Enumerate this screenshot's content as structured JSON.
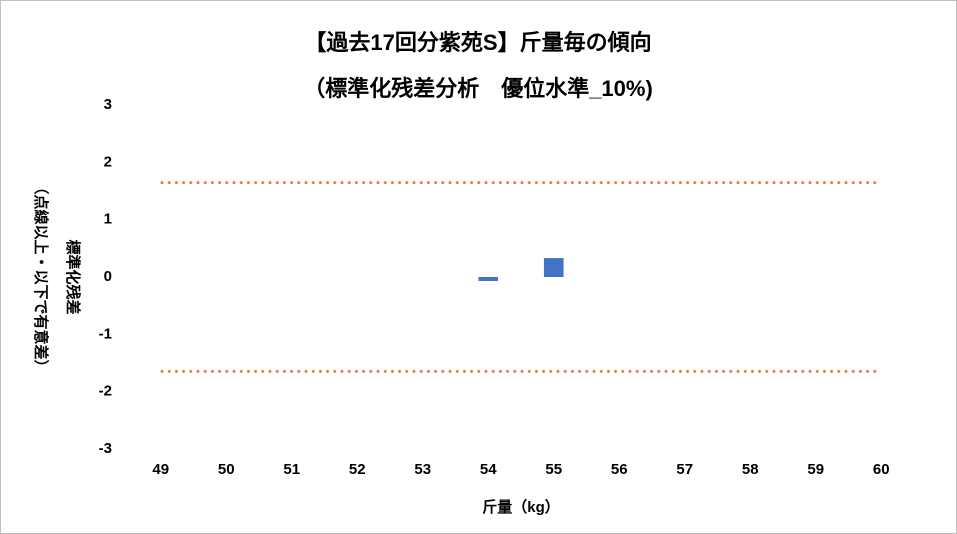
{
  "chart_data": {
    "type": "bar",
    "title": "【過去17回分紫苑S】斤量毎の傾向",
    "subtitle": "（標準化残差分析　優位水準_10%)",
    "y_label": [
      "標準化残差",
      "（点線以上・以下で有意差）"
    ],
    "x_label": "斤量（kg）",
    "categories": [
      "49",
      "50",
      "51",
      "52",
      "53",
      "54",
      "55",
      "56",
      "57",
      "58",
      "59",
      "60"
    ],
    "values": [
      0,
      0,
      0,
      0,
      0,
      -0.07,
      0.33,
      0,
      0,
      0,
      0,
      0
    ],
    "color": "#4472c4",
    "ylim": [
      -3,
      3
    ],
    "yticks": [
      -3,
      -2,
      -1,
      0,
      1,
      2,
      3
    ],
    "reference_lines": {
      "values": [
        1.645,
        -1.645
      ],
      "color": "#ed7d31"
    },
    "grid": false
  }
}
